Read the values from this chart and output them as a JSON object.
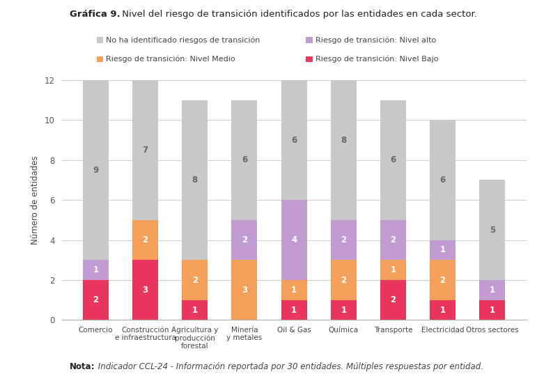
{
  "title_bold": "Gráfica 9.",
  "title_rest": " Nivel del riesgo de transición identificados por las entidades en cada sector.",
  "note": "Nota:",
  "note_italic": " Indicador CCL-24 - Información reportada por 30 entidades. Múltiples respuestas por entidad.",
  "ylabel": "Número de entidades",
  "categories": [
    "Comercio",
    "Construcción\ne infraestructura",
    "Agricultura y\nproducción\nforestal",
    "Minería\ny metales",
    "Oil & Gas",
    "Química",
    "Transporte",
    "Electricidad",
    "Otros sectores"
  ],
  "series": {
    "bajo": [
      2,
      3,
      1,
      0,
      1,
      1,
      2,
      1,
      1
    ],
    "medio": [
      0,
      2,
      2,
      3,
      1,
      2,
      1,
      2,
      0
    ],
    "alto": [
      1,
      0,
      0,
      2,
      4,
      2,
      2,
      1,
      1
    ],
    "no": [
      9,
      7,
      8,
      6,
      6,
      8,
      6,
      6,
      5
    ]
  },
  "colors": {
    "bajo": "#E8365D",
    "medio": "#F5A05A",
    "alto": "#C39BD3",
    "no": "#C8C8C8"
  },
  "legend_labels": {
    "no": "No ha identificado riesgos de transición",
    "alto": "Riesgo de transición: Nivel alto",
    "medio": "Riesgo de transición: Nivel Medio",
    "bajo": "Riesgo de transición: Nivel Bajo"
  },
  "ylim": [
    0,
    12
  ],
  "yticks": [
    0,
    2,
    4,
    6,
    8,
    10,
    12
  ],
  "background_color": "#FFFFFF"
}
